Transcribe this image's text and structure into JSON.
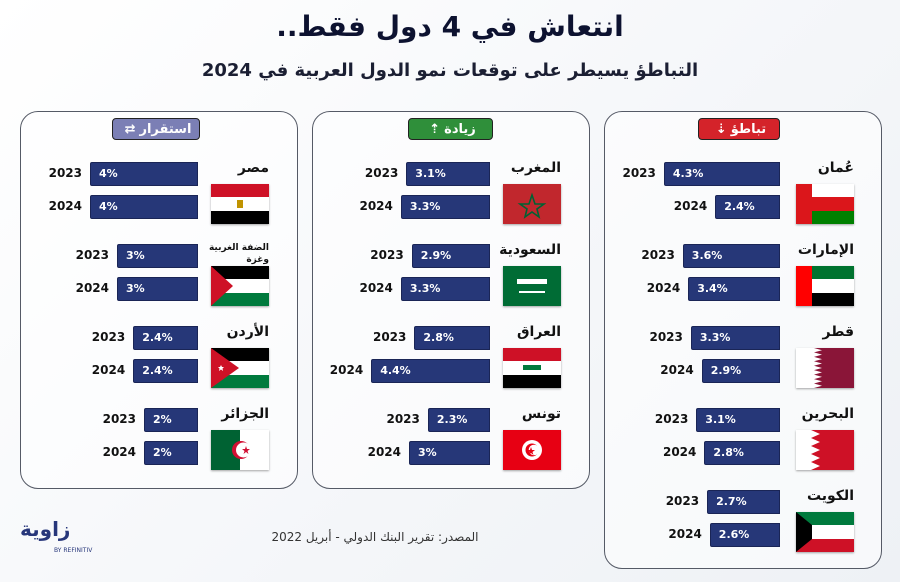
{
  "title": "انتعاش في 4 دول فقط..",
  "subtitle": "التباطؤ يسيطر على توقعات نمو الدول العربية في 2024",
  "source": "المصدر: تقرير البنك الدولي - أبريل 2022",
  "logo": {
    "name": "زاوية",
    "sub": "BY REFINITIV"
  },
  "colors": {
    "bar": "#263778",
    "slowdown": "#d4232a",
    "increase": "#2f8f3a",
    "stable": "#7b7fb5"
  },
  "chart_data": [
    {
      "type": "bar",
      "category": "تباطؤ",
      "icon": "arrow-down-icon",
      "countries": [
        {
          "name": "عُمان",
          "flag": "oman",
          "y2023": 4.3,
          "y2024": 2.4,
          "label2023": "4.3%",
          "label2024": "2.4%"
        },
        {
          "name": "الإمارات",
          "flag": "uae",
          "y2023": 3.6,
          "y2024": 3.4,
          "label2023": "3.6%",
          "label2024": "3.4%"
        },
        {
          "name": "قطر",
          "flag": "qatar",
          "y2023": 3.3,
          "y2024": 2.9,
          "label2023": "3.3%",
          "label2024": "2.9%"
        },
        {
          "name": "البحرين",
          "flag": "bahrain",
          "y2023": 3.1,
          "y2024": 2.8,
          "label2023": "3.1%",
          "label2024": "2.8%"
        },
        {
          "name": "الكويت",
          "flag": "kuwait",
          "y2023": 2.7,
          "y2024": 2.6,
          "label2023": "2.7%",
          "label2024": "2.6%"
        }
      ]
    },
    {
      "type": "bar",
      "category": "زيادة",
      "icon": "arrow-up-icon",
      "countries": [
        {
          "name": "المغرب",
          "flag": "morocco",
          "y2023": 3.1,
          "y2024": 3.3,
          "label2023": "3.1%",
          "label2024": "3.3%"
        },
        {
          "name": "السعودية",
          "flag": "saudi",
          "y2023": 2.9,
          "y2024": 3.3,
          "label2023": "2.9%",
          "label2024": "3.3%"
        },
        {
          "name": "العراق",
          "flag": "iraq",
          "y2023": 2.8,
          "y2024": 4.4,
          "label2023": "2.8%",
          "label2024": "4.4%"
        },
        {
          "name": "تونس",
          "flag": "tunisia",
          "y2023": 2.3,
          "y2024": 3.0,
          "label2023": "2.3%",
          "label2024": "3%"
        }
      ]
    },
    {
      "type": "bar",
      "category": "استقرار",
      "icon": "swap-arrows-icon",
      "countries": [
        {
          "name": "مصر",
          "flag": "egypt",
          "y2023": 4.0,
          "y2024": 4.0,
          "label2023": "4%",
          "label2024": "4%"
        },
        {
          "name": "الضفة الغربية وغزة",
          "flag": "palestine",
          "y2023": 3.0,
          "y2024": 3.0,
          "label2023": "3%",
          "label2024": "3%"
        },
        {
          "name": "الأردن",
          "flag": "jordan",
          "y2023": 2.4,
          "y2024": 2.4,
          "label2023": "2.4%",
          "label2024": "2.4%"
        },
        {
          "name": "الجزائر",
          "flag": "algeria",
          "y2023": 2.0,
          "y2024": 2.0,
          "label2023": "2%",
          "label2024": "2%"
        }
      ]
    }
  ],
  "year_labels": [
    "2023",
    "2024"
  ]
}
